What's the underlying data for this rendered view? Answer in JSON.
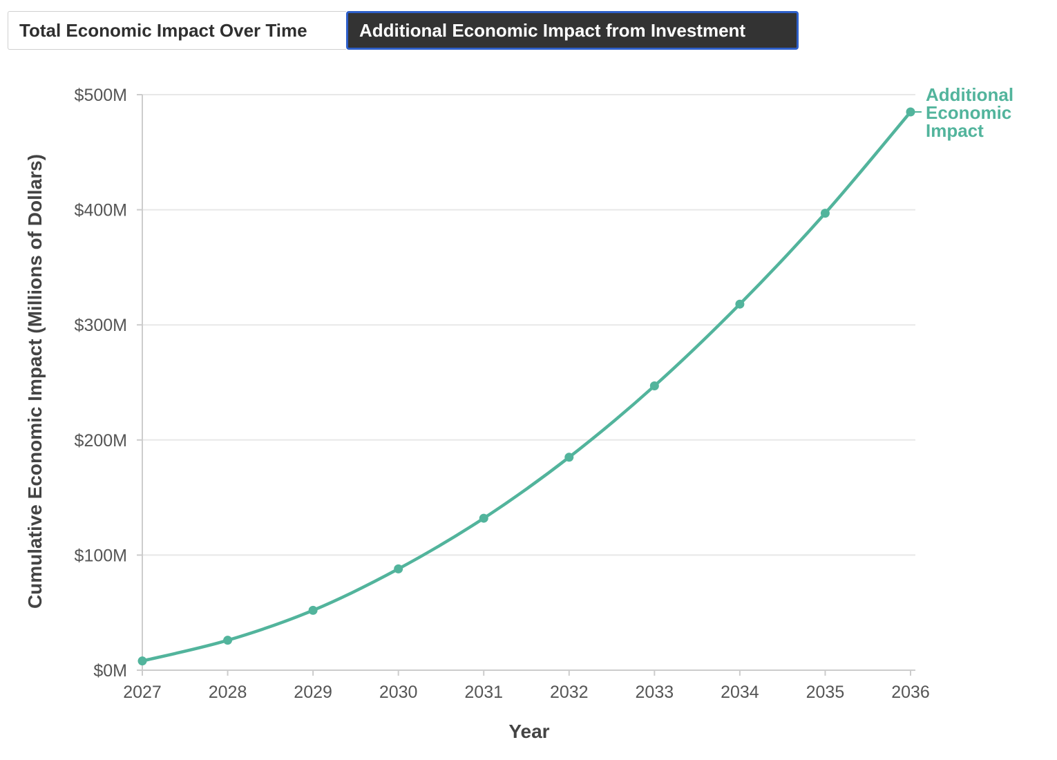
{
  "tabs": [
    {
      "label": "Total Economic Impact Over Time",
      "active": false
    },
    {
      "label": "Additional Economic Impact from Investment",
      "active": true
    }
  ],
  "colors": {
    "series": "#52b49c",
    "grid": "#e8e8e8",
    "axis": "#cccccc",
    "tab_active_bg": "#333333",
    "tab_active_border": "#2e5fc9"
  },
  "chart_data": {
    "type": "line",
    "xlabel": "Year",
    "ylabel": "Cumulative Economic Impact (Millions of Dollars)",
    "ylim": [
      0,
      500
    ],
    "y_ticks": [
      {
        "value": 0,
        "label": "$0M"
      },
      {
        "value": 100,
        "label": "$100M"
      },
      {
        "value": 200,
        "label": "$200M"
      },
      {
        "value": 300,
        "label": "$300M"
      },
      {
        "value": 400,
        "label": "$400M"
      },
      {
        "value": 500,
        "label": "$500M"
      }
    ],
    "x": [
      "2027",
      "2028",
      "2029",
      "2030",
      "2031",
      "2032",
      "2033",
      "2034",
      "2035",
      "2036"
    ],
    "grid": true,
    "series": [
      {
        "name_lines": [
          "Additional",
          "Economic",
          "Impact"
        ],
        "values": [
          8,
          26,
          52,
          88,
          132,
          185,
          247,
          318,
          397,
          485
        ]
      }
    ]
  }
}
